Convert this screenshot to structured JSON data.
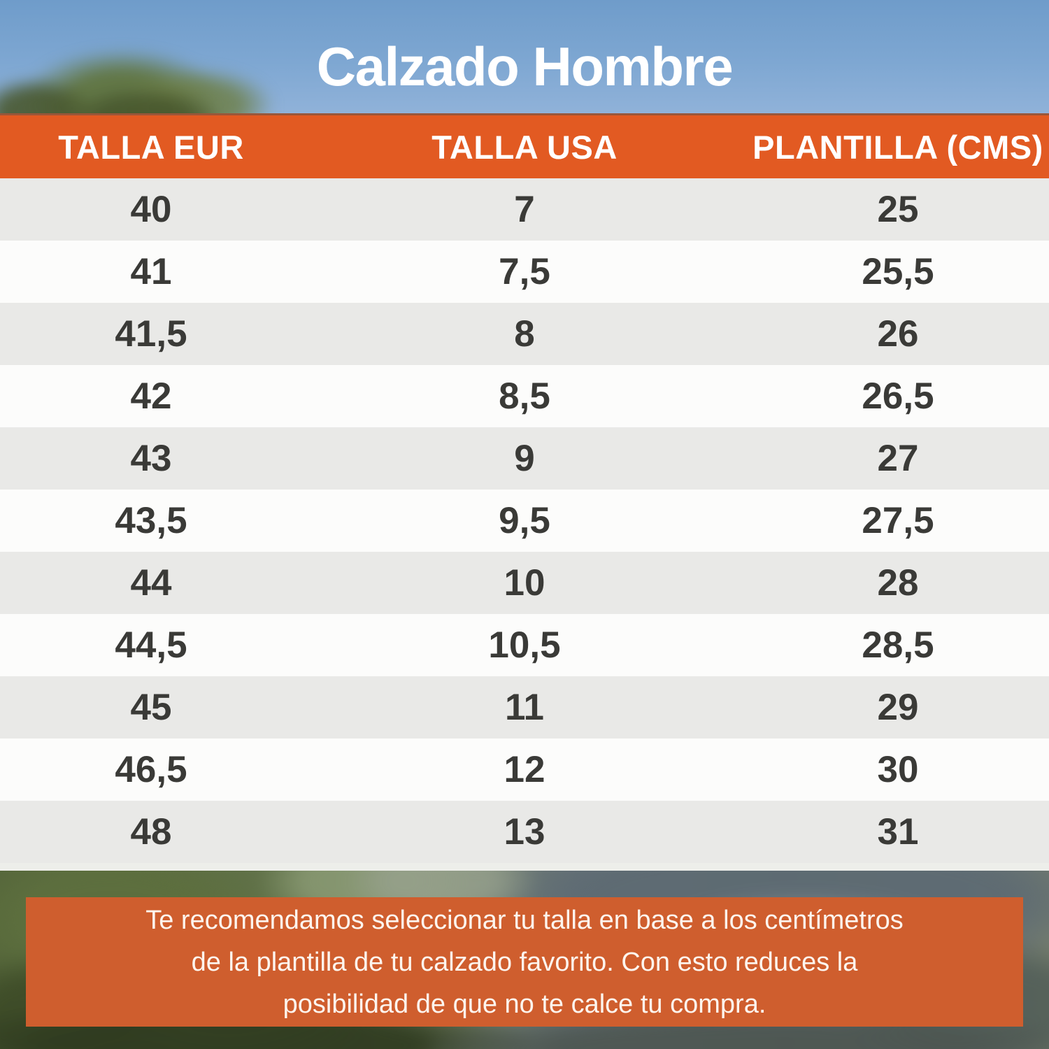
{
  "title": "Calzado Hombre",
  "table": {
    "headers": [
      "TALLA EUR",
      "TALLA USA",
      "PLANTILLA (CMS)"
    ],
    "rows": [
      {
        "eur": "40",
        "usa": "7",
        "cm": "25"
      },
      {
        "eur": "41",
        "usa": "7,5",
        "cm": "25,5"
      },
      {
        "eur": "41,5",
        "usa": "8",
        "cm": "26"
      },
      {
        "eur": "42",
        "usa": "8,5",
        "cm": "26,5"
      },
      {
        "eur": "43",
        "usa": "9",
        "cm": "27"
      },
      {
        "eur": "43,5",
        "usa": "9,5",
        "cm": "27,5"
      },
      {
        "eur": "44",
        "usa": "10",
        "cm": "28"
      },
      {
        "eur": "44,5",
        "usa": "10,5",
        "cm": "28,5"
      },
      {
        "eur": "45",
        "usa": "11",
        "cm": "29"
      },
      {
        "eur": "46,5",
        "usa": "12",
        "cm": "30"
      },
      {
        "eur": "48",
        "usa": "13",
        "cm": "31"
      }
    ]
  },
  "note": {
    "lines": [
      "Te recomendamos seleccionar tu talla en base a los centímetros",
      "de la plantilla de tu calzado favorito. Con esto reduces la",
      "posibilidad de que no te calce tu compra."
    ]
  },
  "colors": {
    "header_orange": "#e25a22",
    "note_orange": "#cf5e2e",
    "row_gray": "#e9e9e7",
    "row_white": "#fcfcfb",
    "text_dark": "#3a3a37",
    "sky_top": "#6f9cca",
    "sky_bottom": "#90b2d9",
    "note_text": "#fdf5ee",
    "strip": "#edeeea"
  },
  "chart_data": {
    "type": "table",
    "title": "Calzado Hombre",
    "columns": [
      "TALLA EUR",
      "TALLA USA",
      "PLANTILLA (CMS)"
    ],
    "rows": [
      [
        "40",
        "7",
        "25"
      ],
      [
        "41",
        "7,5",
        "25,5"
      ],
      [
        "41,5",
        "8",
        "26"
      ],
      [
        "42",
        "8,5",
        "26,5"
      ],
      [
        "43",
        "9",
        "27"
      ],
      [
        "43,5",
        "9,5",
        "27,5"
      ],
      [
        "44",
        "10",
        "28"
      ],
      [
        "44,5",
        "10,5",
        "28,5"
      ],
      [
        "45",
        "11",
        "29"
      ],
      [
        "46,5",
        "12",
        "30"
      ],
      [
        "48",
        "13",
        "31"
      ]
    ],
    "footnote": "Te recomendamos seleccionar tu talla en base a los centímetros de la plantilla de tu calzado favorito. Con esto reduces la posibilidad de que no te calce tu compra."
  }
}
